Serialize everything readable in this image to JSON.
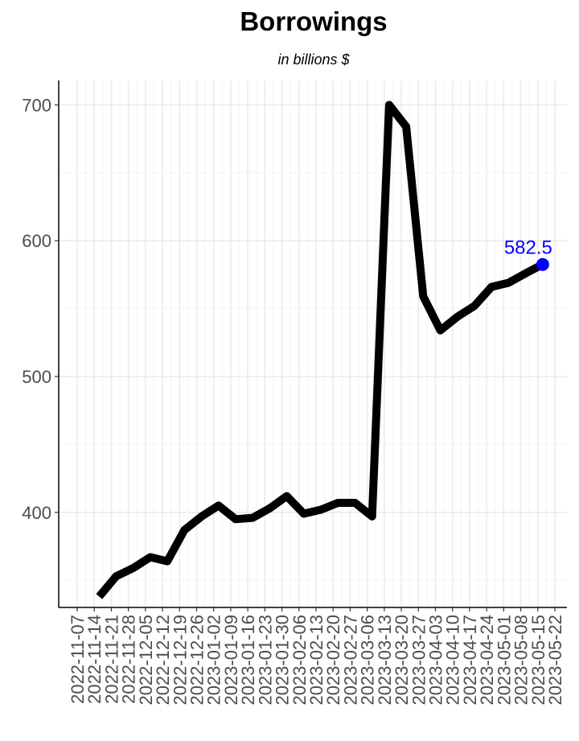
{
  "chart_data": {
    "type": "line",
    "title": "Borrowings",
    "subtitle": "in billions $",
    "xlabel": "",
    "ylabel": "",
    "x_tick_labels": [
      "2022-11-07",
      "2022-11-14",
      "2022-11-21",
      "2022-11-28",
      "2022-12-05",
      "2022-12-12",
      "2022-12-19",
      "2022-12-26",
      "2023-01-02",
      "2023-01-09",
      "2023-01-16",
      "2023-01-23",
      "2023-01-30",
      "2023-02-06",
      "2023-02-13",
      "2023-02-20",
      "2023-02-27",
      "2023-03-06",
      "2023-03-13",
      "2023-03-20",
      "2023-03-27",
      "2023-04-03",
      "2023-04-10",
      "2023-04-17",
      "2023-04-24",
      "2023-05-01",
      "2023-05-08",
      "2023-05-15",
      "2023-05-22"
    ],
    "y_ticks": [
      400,
      500,
      600,
      700
    ],
    "ylim": [
      330,
      718
    ],
    "xlim": [
      "2022-11-07",
      "2023-05-22"
    ],
    "grid": true,
    "series": [
      {
        "color": "#000000",
        "points": [
          {
            "x": "2022-11-16",
            "y": 338
          },
          {
            "x": "2022-11-23",
            "y": 353
          },
          {
            "x": "2022-11-30",
            "y": 359
          },
          {
            "x": "2022-12-07",
            "y": 367
          },
          {
            "x": "2022-12-14",
            "y": 364
          },
          {
            "x": "2022-12-21",
            "y": 387
          },
          {
            "x": "2022-12-28",
            "y": 397
          },
          {
            "x": "2023-01-04",
            "y": 405
          },
          {
            "x": "2023-01-11",
            "y": 395
          },
          {
            "x": "2023-01-18",
            "y": 396
          },
          {
            "x": "2023-01-25",
            "y": 403
          },
          {
            "x": "2023-02-01",
            "y": 412
          },
          {
            "x": "2023-02-08",
            "y": 399
          },
          {
            "x": "2023-02-15",
            "y": 402
          },
          {
            "x": "2023-02-22",
            "y": 407
          },
          {
            "x": "2023-03-01",
            "y": 407
          },
          {
            "x": "2023-03-08",
            "y": 397
          },
          {
            "x": "2023-03-15",
            "y": 700
          },
          {
            "x": "2023-03-22",
            "y": 684
          },
          {
            "x": "2023-03-29",
            "y": 559
          },
          {
            "x": "2023-04-05",
            "y": 534
          },
          {
            "x": "2023-04-12",
            "y": 544
          },
          {
            "x": "2023-04-19",
            "y": 552
          },
          {
            "x": "2023-04-26",
            "y": 566
          },
          {
            "x": "2023-05-03",
            "y": 569
          },
          {
            "x": "2023-05-10",
            "y": 576
          },
          {
            "x": "2023-05-17",
            "y": 582.5
          }
        ]
      }
    ],
    "last_point": {
      "x": "2023-05-17",
      "y": 582.5,
      "label": "582.5",
      "color": "#0000ff"
    }
  }
}
